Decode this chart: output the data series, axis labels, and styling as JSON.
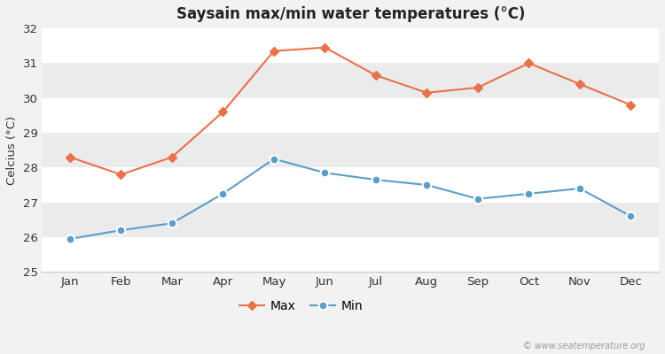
{
  "title": "Saysain max/min water temperatures (°C)",
  "ylabel": "Celcius (°C)",
  "months": [
    "Jan",
    "Feb",
    "Mar",
    "Apr",
    "May",
    "Jun",
    "Jul",
    "Aug",
    "Sep",
    "Oct",
    "Nov",
    "Dec"
  ],
  "max_values": [
    28.3,
    27.8,
    28.3,
    29.6,
    31.35,
    31.45,
    30.65,
    30.15,
    30.3,
    31.0,
    30.4,
    29.8
  ],
  "min_values": [
    25.95,
    26.2,
    26.4,
    27.25,
    28.25,
    27.85,
    27.65,
    27.5,
    27.1,
    27.25,
    27.4,
    26.6
  ],
  "max_color": "#e8724a",
  "min_color": "#5b9ec9",
  "bg_color": "#f2f2f2",
  "band_colors": [
    "#ffffff",
    "#ebebeb"
  ],
  "ylim": [
    25,
    32
  ],
  "yticks": [
    25,
    26,
    27,
    28,
    29,
    30,
    31,
    32
  ],
  "watermark": "© www.seatemperature.org",
  "legend_labels": [
    "Max",
    "Min"
  ]
}
